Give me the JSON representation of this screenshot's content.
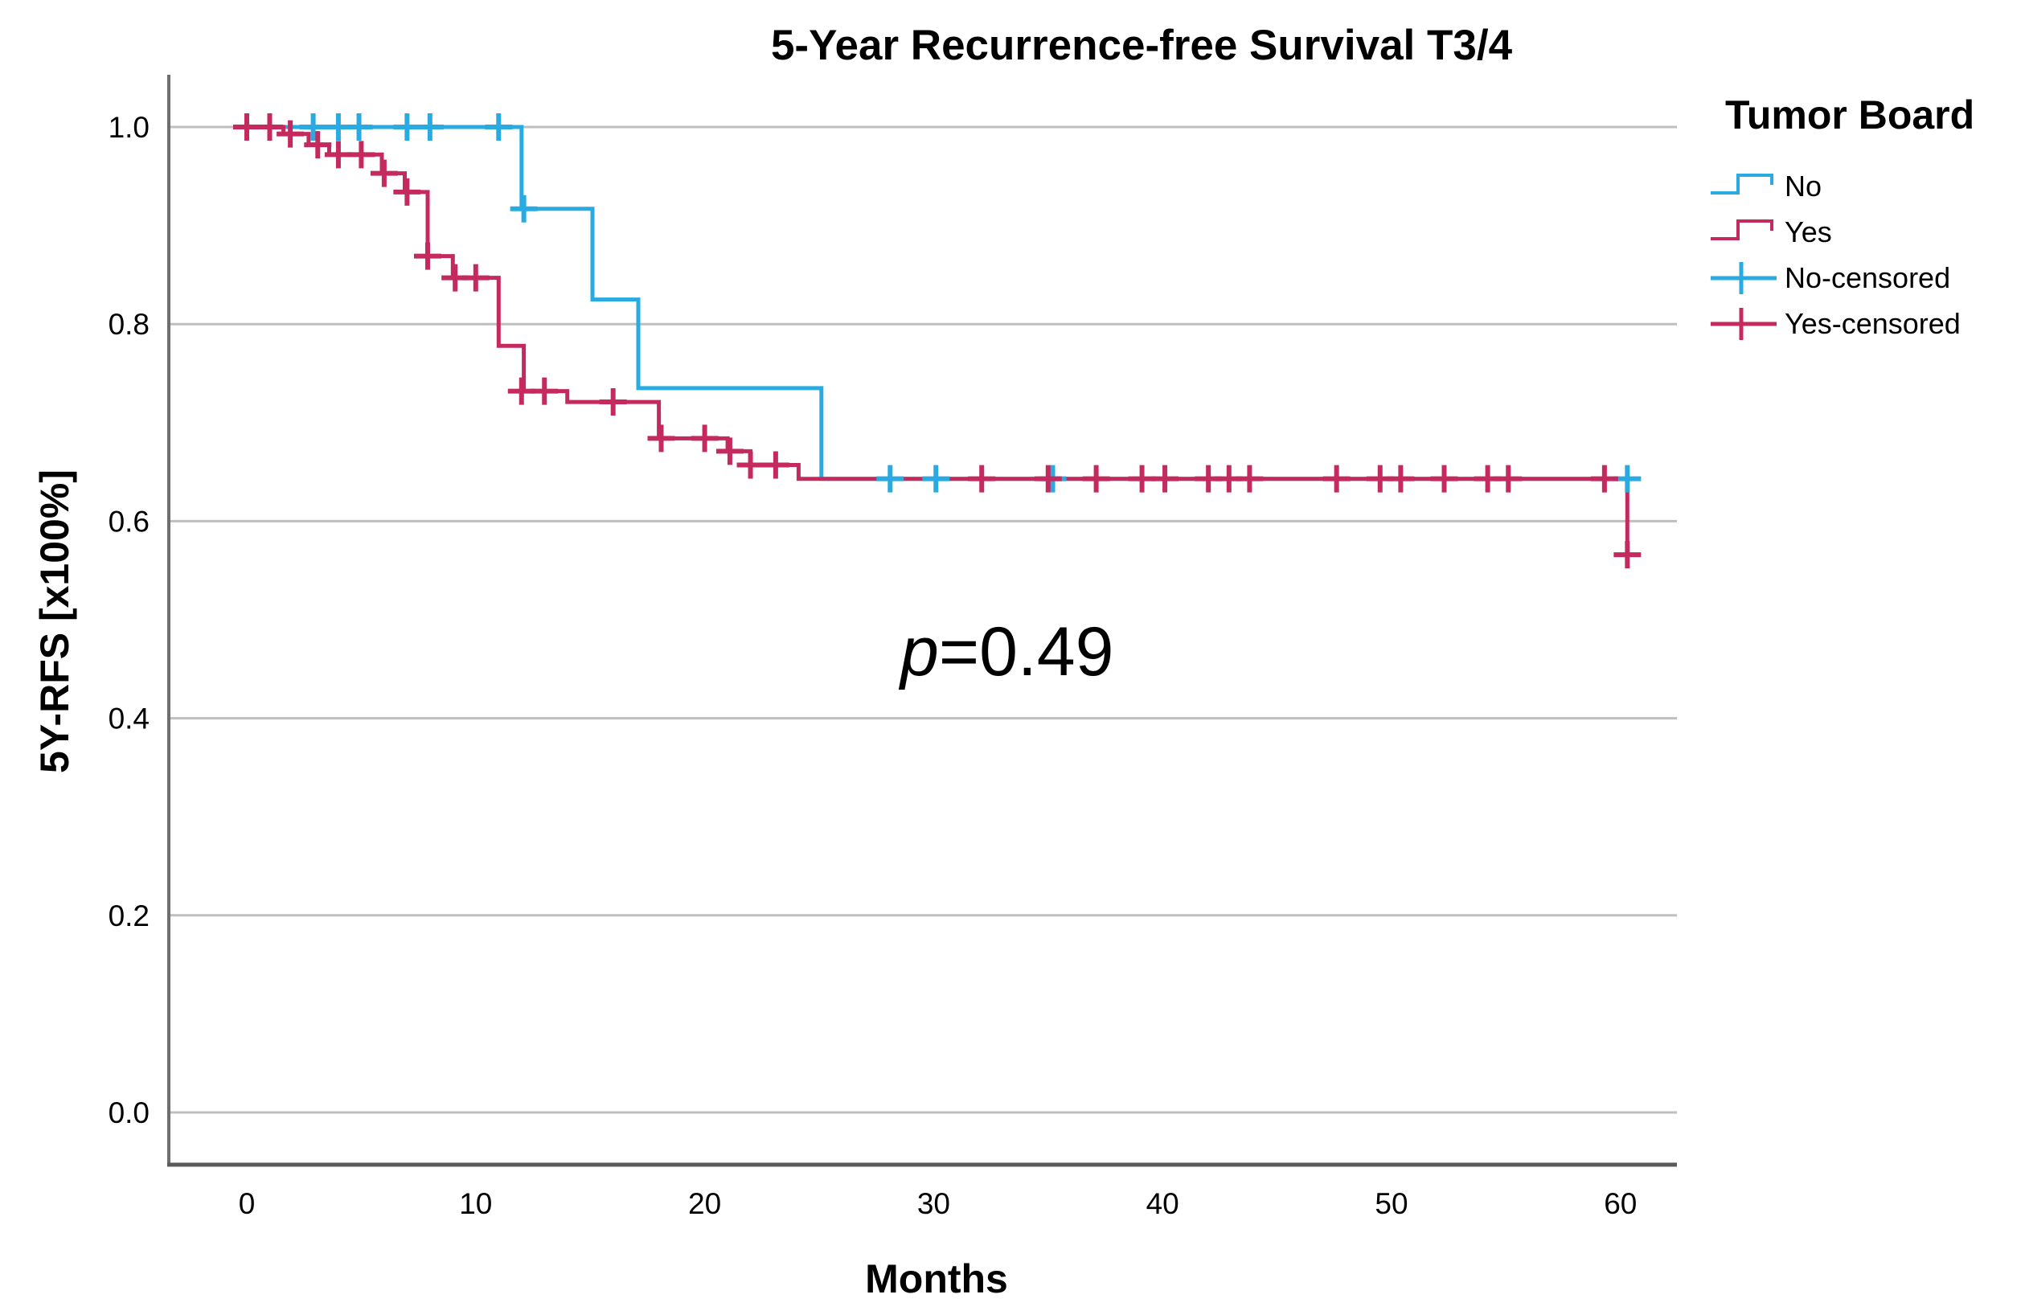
{
  "title": "5-Year Recurrence-free Survival T3/4",
  "annotation": {
    "symbol": "p",
    "value": "=0.49"
  },
  "axes": {
    "x": {
      "label": "Months",
      "ticks": [
        {
          "label": "0",
          "value": 0
        },
        {
          "label": "10",
          "value": 10
        },
        {
          "label": "20",
          "value": 20
        },
        {
          "label": "30",
          "value": 30
        },
        {
          "label": "40",
          "value": 40
        },
        {
          "label": "50",
          "value": 50
        },
        {
          "label": "60",
          "value": 60
        }
      ]
    },
    "y": {
      "label": "5Y-RFS [x100%]",
      "ticks": [
        {
          "label": "1.0",
          "value": 1.0
        },
        {
          "label": "0.8",
          "value": 0.8
        },
        {
          "label": "0.6",
          "value": 0.6
        },
        {
          "label": "0.4",
          "value": 0.4
        },
        {
          "label": "0.2",
          "value": 0.2
        },
        {
          "label": "0.0",
          "value": 0.0
        }
      ]
    }
  },
  "legend": {
    "title": "Tumor Board",
    "entries": [
      {
        "label": "No",
        "type": "line",
        "color": "#29ABE2"
      },
      {
        "label": "Yes",
        "type": "line",
        "color": "#C42A5E"
      },
      {
        "label": "No-censored",
        "type": "censor",
        "color": "#29ABE2"
      },
      {
        "label": "Yes-censored",
        "type": "censor",
        "color": "#C42A5E"
      }
    ]
  },
  "colors": {
    "no_group": "#29ABE2",
    "yes_group": "#C42A5E",
    "gridline": "#BFBFBF",
    "axis_spine": "#6E6E6E",
    "text": "#000000",
    "background": "#FFFFFF"
  },
  "chart_data": {
    "type": "line",
    "subtype": "kaplan-meier-step",
    "title": "5-Year Recurrence-free Survival T3/4",
    "xlabel": "Months",
    "ylabel": "5Y-RFS [x100%]",
    "xlim": [
      0,
      62
    ],
    "ylim": [
      0.0,
      1.05
    ],
    "grid": "horizontal",
    "legend_position": "right",
    "p_value_annotation": "p=0.49",
    "series": [
      {
        "name": "No",
        "color": "#29ABE2",
        "steps": [
          [
            0,
            1.0
          ],
          [
            12.0,
            1.0
          ],
          [
            12.0,
            0.917
          ],
          [
            15.1,
            0.917
          ],
          [
            15.1,
            0.825
          ],
          [
            17.1,
            0.825
          ],
          [
            17.1,
            0.735
          ],
          [
            25.1,
            0.735
          ],
          [
            25.1,
            0.643
          ],
          [
            60.3,
            0.643
          ]
        ],
        "censored": [
          [
            2.9,
            1.0
          ],
          [
            4.0,
            1.0
          ],
          [
            4.9,
            1.0
          ],
          [
            7.0,
            1.0
          ],
          [
            8.0,
            1.0
          ],
          [
            11.0,
            1.0
          ],
          [
            12.1,
            0.917
          ],
          [
            28.1,
            0.643
          ],
          [
            30.1,
            0.643
          ],
          [
            35.2,
            0.643
          ],
          [
            60.3,
            0.643
          ]
        ]
      },
      {
        "name": "Yes",
        "color": "#C42A5E",
        "steps": [
          [
            0,
            1.0
          ],
          [
            1.6,
            1.0
          ],
          [
            1.6,
            0.993
          ],
          [
            2.7,
            0.993
          ],
          [
            2.7,
            0.982
          ],
          [
            3.6,
            0.982
          ],
          [
            3.6,
            0.972
          ],
          [
            5.9,
            0.972
          ],
          [
            5.9,
            0.953
          ],
          [
            6.9,
            0.953
          ],
          [
            6.9,
            0.934
          ],
          [
            7.9,
            0.934
          ],
          [
            7.9,
            0.869
          ],
          [
            9.0,
            0.869
          ],
          [
            9.0,
            0.847
          ],
          [
            11.0,
            0.847
          ],
          [
            11.0,
            0.778
          ],
          [
            12.1,
            0.778
          ],
          [
            12.1,
            0.732
          ],
          [
            14.0,
            0.732
          ],
          [
            14.0,
            0.721
          ],
          [
            18.0,
            0.721
          ],
          [
            18.0,
            0.684
          ],
          [
            21.0,
            0.684
          ],
          [
            21.0,
            0.671
          ],
          [
            22.0,
            0.671
          ],
          [
            22.0,
            0.657
          ],
          [
            24.1,
            0.657
          ],
          [
            24.1,
            0.643
          ],
          [
            60.3,
            0.643
          ],
          [
            60.3,
            0.566
          ]
        ],
        "censored": [
          [
            0,
            1.0
          ],
          [
            1.0,
            1.0
          ],
          [
            1.9,
            0.993
          ],
          [
            3.1,
            0.982
          ],
          [
            4.0,
            0.972
          ],
          [
            5.0,
            0.972
          ],
          [
            6.0,
            0.953
          ],
          [
            7.0,
            0.934
          ],
          [
            7.9,
            0.869
          ],
          [
            9.1,
            0.847
          ],
          [
            10.0,
            0.847
          ],
          [
            12.0,
            0.732
          ],
          [
            13.0,
            0.732
          ],
          [
            16.0,
            0.721
          ],
          [
            18.1,
            0.684
          ],
          [
            20.0,
            0.684
          ],
          [
            21.1,
            0.671
          ],
          [
            22.0,
            0.657
          ],
          [
            23.1,
            0.657
          ],
          [
            32.1,
            0.643
          ],
          [
            35.0,
            0.643
          ],
          [
            37.1,
            0.643
          ],
          [
            39.1,
            0.643
          ],
          [
            40.1,
            0.643
          ],
          [
            42.0,
            0.643
          ],
          [
            42.9,
            0.643
          ],
          [
            43.8,
            0.643
          ],
          [
            47.6,
            0.643
          ],
          [
            49.5,
            0.643
          ],
          [
            50.4,
            0.643
          ],
          [
            52.3,
            0.643
          ],
          [
            54.2,
            0.643
          ],
          [
            55.1,
            0.643
          ],
          [
            59.3,
            0.643
          ],
          [
            60.3,
            0.566
          ]
        ]
      }
    ]
  }
}
